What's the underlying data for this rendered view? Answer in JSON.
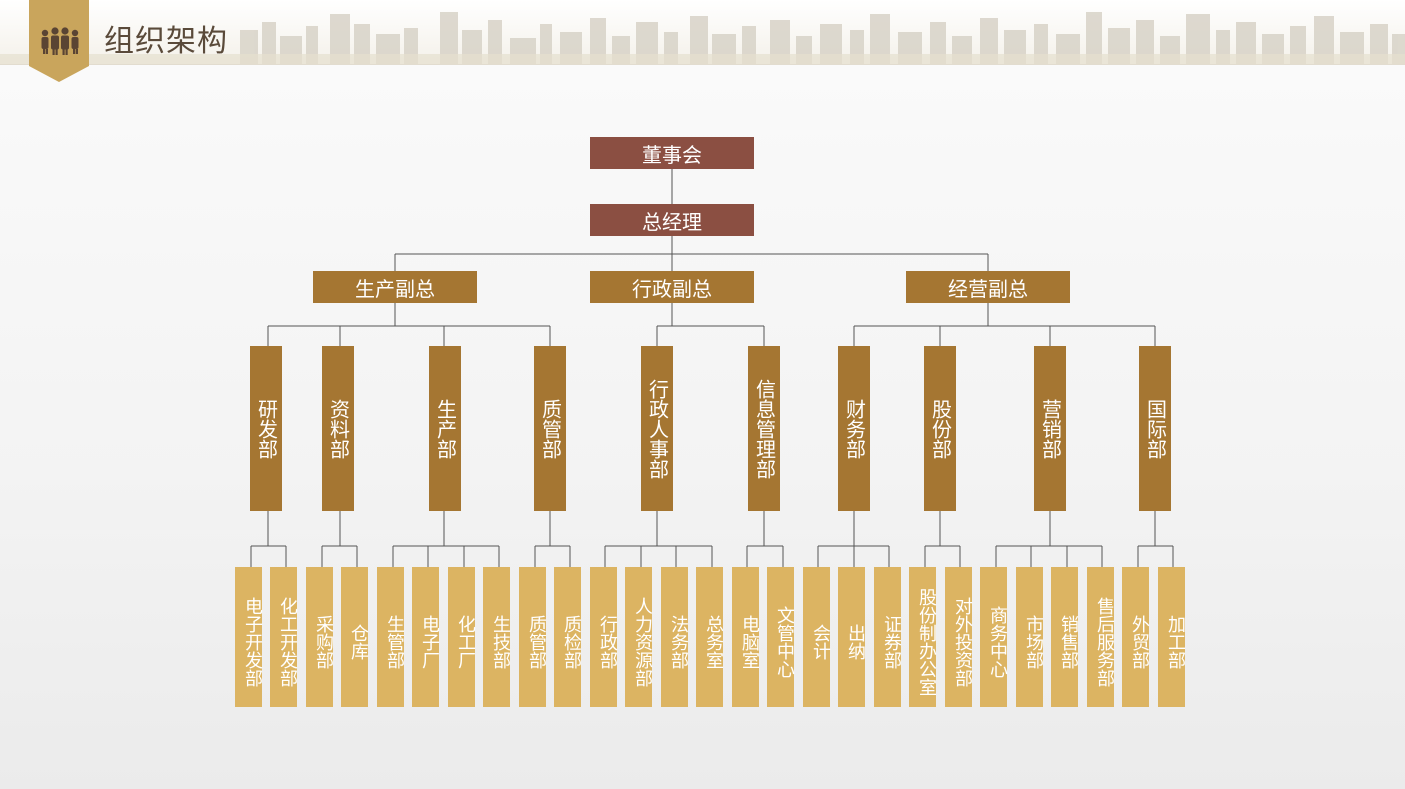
{
  "header": {
    "title": "组织架构",
    "badge_icon": "people-group-icon"
  },
  "colors": {
    "top": "#8b4f42",
    "vp": "#a57632",
    "dept": "#a57632",
    "sub": "#dcb462",
    "line": "#555555"
  },
  "org": {
    "board": "董事会",
    "gm": "总经理",
    "vps": {
      "production": "生产副总",
      "admin": "行政副总",
      "business": "经营副总"
    },
    "depts": [
      {
        "name": "研发部",
        "subs": [
          "电子开发部",
          "化工开发部"
        ]
      },
      {
        "name": "资料部",
        "subs": [
          "采购部",
          "仓库"
        ]
      },
      {
        "name": "生产部",
        "subs": [
          "生管部",
          "电子厂",
          "化工厂",
          "生技部"
        ]
      },
      {
        "name": "质管部",
        "subs": [
          "质管部",
          "质检部"
        ]
      },
      {
        "name": "行政人事部",
        "subs": [
          "行政部",
          "人力资源部",
          "法务部",
          "总务室"
        ]
      },
      {
        "name": "信息管理部",
        "subs": [
          "电脑室",
          "文管中心"
        ]
      },
      {
        "name": "财务部",
        "subs": [
          "会计",
          "出纳",
          "证券部"
        ]
      },
      {
        "name": "股份部",
        "subs": [
          "股份制办公室",
          "对外投资部"
        ]
      },
      {
        "name": "营销部",
        "subs": [
          "商务中心",
          "市场部",
          "销售部",
          "售后服务部"
        ]
      },
      {
        "name": "国际部",
        "subs": [
          "外贸部",
          "加工部"
        ]
      }
    ]
  }
}
